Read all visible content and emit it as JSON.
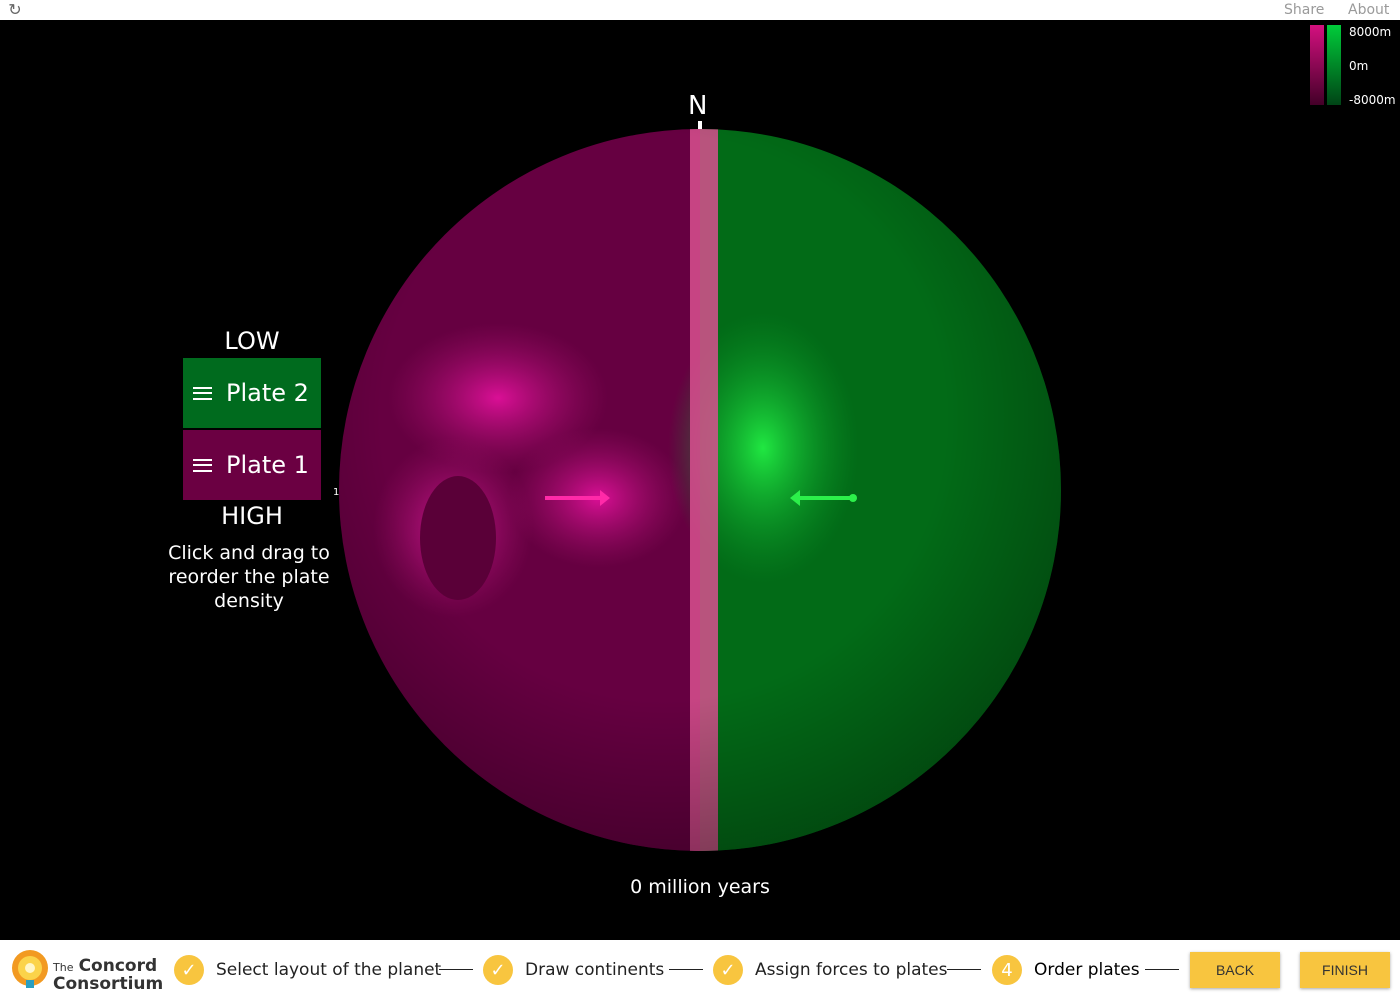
{
  "header": {
    "reload_icon": "reload-icon",
    "share_label": "Share",
    "about_label": "About"
  },
  "legend": {
    "top_label": "8000m",
    "mid_label": "0m",
    "bottom_label": "-8000m",
    "colors": {
      "plate1": "#d4107f",
      "plate2": "#00cc3a"
    }
  },
  "compass": {
    "north_label": "N"
  },
  "plate_order": {
    "low_label": "LOW",
    "high_label": "HIGH",
    "plates": [
      {
        "label": "Plate 2",
        "color": "#006b1e"
      },
      {
        "label": "Plate 1",
        "color": "#6b0042"
      }
    ],
    "index_mark": "1",
    "help_text": "Click and drag to reorder the plate density"
  },
  "simulation": {
    "time_label": "0 million years"
  },
  "footer": {
    "logo": {
      "the": "The",
      "concord": "Concord",
      "consortium": "Consortium"
    },
    "steps": [
      {
        "marker": "✓",
        "label": "Select layout of the planet",
        "state": "done"
      },
      {
        "marker": "✓",
        "label": "Draw continents",
        "state": "done"
      },
      {
        "marker": "✓",
        "label": "Assign forces to plates",
        "state": "done"
      },
      {
        "marker": "4",
        "label": "Order plates",
        "state": "current"
      }
    ],
    "back_label": "BACK",
    "finish_label": "FINISH"
  }
}
